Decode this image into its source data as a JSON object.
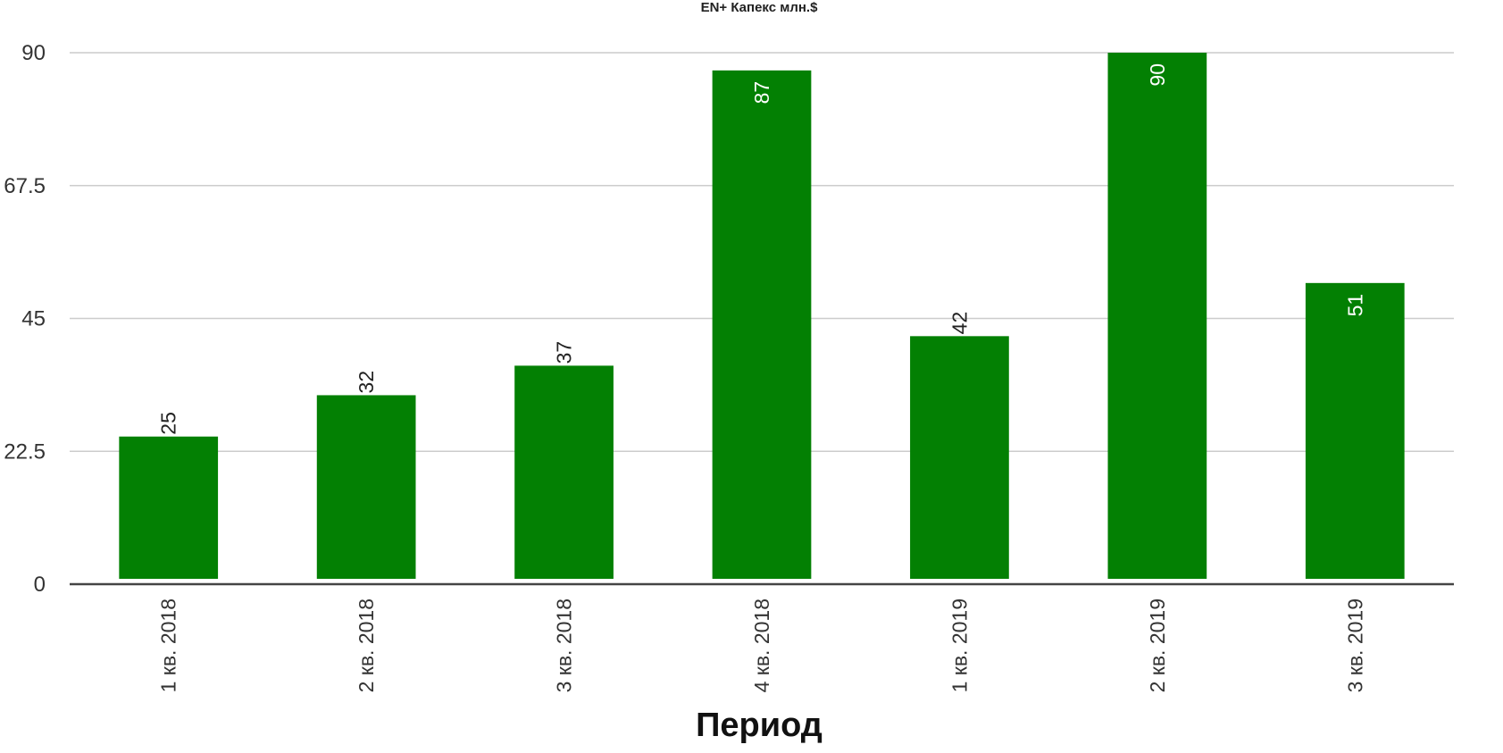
{
  "chart_data": {
    "type": "bar",
    "title": "EN+ Капекс млн.$",
    "xlabel": "Период",
    "ylabel": "",
    "categories": [
      "1 кв. 2018",
      "2 кв. 2018",
      "3 кв. 2018",
      "4 кв. 2018",
      "1 кв. 2019",
      "2 кв. 2019",
      "3 кв. 2019"
    ],
    "series": [
      {
        "values": [
          25,
          32,
          37,
          87,
          42,
          90,
          51
        ],
        "color": "#038003"
      }
    ],
    "data_labels": [
      "25",
      "32",
      "37",
      "87",
      "42",
      "90",
      "51"
    ],
    "ylim": [
      0,
      90
    ],
    "yticks": [
      0,
      22.5,
      45,
      67.5,
      90
    ],
    "ytick_labels": [
      "0",
      "22.5",
      "45",
      "67.5",
      "90"
    ],
    "grid": true,
    "legend": "none",
    "colors": {
      "bar": "#038003",
      "grid": "#cccccc",
      "baseline": "#444444",
      "label_inside": "#ffffff",
      "label_outside": "#222222"
    }
  }
}
